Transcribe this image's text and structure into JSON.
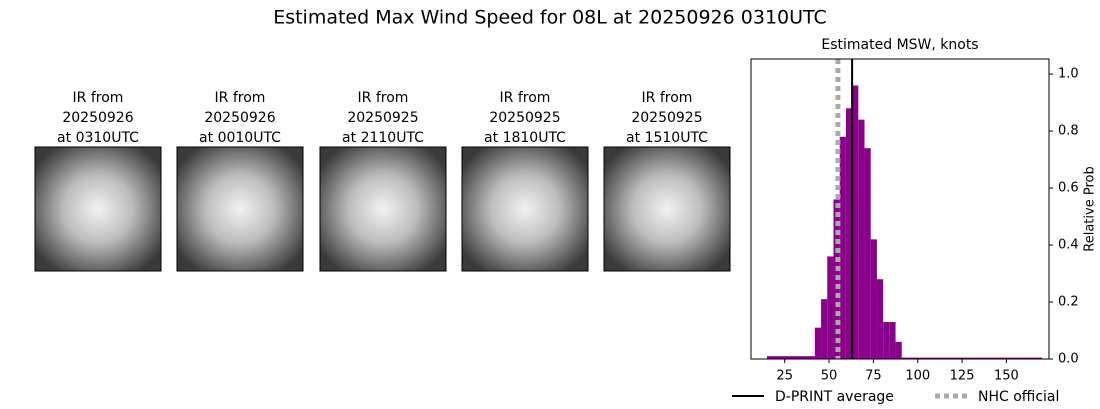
{
  "figure_title": "Estimated Max Wind Speed for 08L at 20250926 0310UTC",
  "panels": [
    {
      "lines": [
        "IR from",
        "20250926",
        "at 0310UTC"
      ]
    },
    {
      "lines": [
        "IR from",
        "20250926",
        "at 0010UTC"
      ]
    },
    {
      "lines": [
        "IR from",
        "20250925",
        "at 2110UTC"
      ]
    },
    {
      "lines": [
        "IR from",
        "20250925",
        "at 1810UTC"
      ]
    },
    {
      "lines": [
        "IR from",
        "20250925",
        "at 1510UTC"
      ]
    }
  ],
  "chart_data": {
    "type": "histogram",
    "title": "Estimated MSW, knots",
    "ylabel": "Relative Prob",
    "color": "#8b008b",
    "bins": [
      15,
      42,
      45.5,
      49,
      52.5,
      56,
      59.5,
      63,
      66.5,
      70,
      73.5,
      77,
      80.5,
      84,
      87.5,
      91,
      170
    ],
    "counts": [
      0.01,
      0.11,
      0.21,
      0.36,
      0.56,
      0.78,
      0.88,
      0.96,
      0.84,
      0.74,
      0.42,
      0.28,
      0.13,
      0.13,
      0.06,
      0.005
    ],
    "xlim": [
      6,
      174
    ],
    "ylim": [
      0,
      1.053
    ],
    "xticks": [
      25,
      50,
      75,
      100,
      125,
      150
    ],
    "yticks": [
      {
        "value": 0,
        "label": "0.0"
      },
      {
        "value": 0.2,
        "label": "0.2"
      },
      {
        "value": 0.4,
        "label": "0.4"
      },
      {
        "value": 0.6,
        "label": "0.6"
      },
      {
        "value": 0.8,
        "label": "0.8"
      },
      {
        "value": 1,
        "label": "1.0"
      }
    ],
    "lines": [
      {
        "name": "D-PRINT average",
        "x": 63,
        "color": "#000000",
        "style": "solid"
      },
      {
        "name": "NHC official",
        "x": 55,
        "color": "#aaaaaa",
        "style": "dotted"
      }
    ]
  }
}
